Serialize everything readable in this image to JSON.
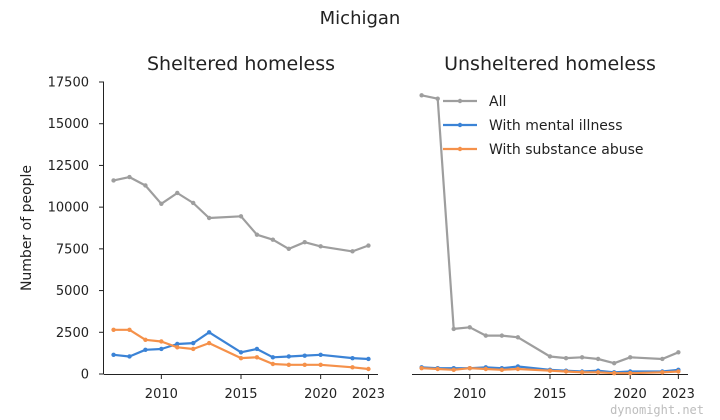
{
  "title": "Michigan",
  "watermark": "dynomight.net",
  "chart_data": {
    "type": "line",
    "ylabel": "Number of people",
    "ylim": [
      0,
      17500
    ],
    "yticks": [
      0,
      2500,
      5000,
      7500,
      10000,
      12500,
      15000,
      17500
    ],
    "xlim": [
      2006.4,
      2023.6
    ],
    "xticks": [
      2010,
      2015,
      2020,
      2023
    ],
    "legend_position": "top-right",
    "grid": false,
    "colors": {
      "All": "#9e9e9e",
      "With mental illness": "#3b83d6",
      "With substance abuse": "#f5914a"
    },
    "panels": [
      {
        "title": "Sheltered homeless",
        "series": [
          {
            "name": "All",
            "x": [
              2007,
              2008,
              2009,
              2010,
              2011,
              2012,
              2013,
              2015,
              2016,
              2017,
              2018,
              2019,
              2020,
              2022,
              2023
            ],
            "y": [
              11600,
              11800,
              11300,
              10200,
              10850,
              10250,
              9350,
              9450,
              8350,
              8050,
              7500,
              7900,
              7650,
              7350,
              7700
            ]
          },
          {
            "name": "With mental illness",
            "x": [
              2007,
              2008,
              2009,
              2010,
              2011,
              2012,
              2013,
              2015,
              2016,
              2017,
              2018,
              2019,
              2020,
              2022,
              2023
            ],
            "y": [
              1150,
              1050,
              1450,
              1500,
              1800,
              1850,
              2500,
              1300,
              1500,
              1000,
              1050,
              1100,
              1150,
              950,
              900
            ]
          },
          {
            "name": "With substance abuse",
            "x": [
              2007,
              2008,
              2009,
              2010,
              2011,
              2012,
              2013,
              2015,
              2016,
              2017,
              2018,
              2019,
              2020,
              2022,
              2023
            ],
            "y": [
              2650,
              2650,
              2050,
              1950,
              1600,
              1500,
              1850,
              950,
              1000,
              600,
              550,
              550,
              550,
              400,
              300
            ]
          }
        ]
      },
      {
        "title": "Unsheltered homeless",
        "series": [
          {
            "name": "All",
            "x": [
              2007,
              2008,
              2009,
              2010,
              2011,
              2012,
              2013,
              2015,
              2016,
              2017,
              2018,
              2019,
              2020,
              2022,
              2023
            ],
            "y": [
              16700,
              16500,
              2700,
              2800,
              2300,
              2300,
              2200,
              1050,
              950,
              1000,
              900,
              650,
              1000,
              900,
              1300
            ]
          },
          {
            "name": "With mental illness",
            "x": [
              2007,
              2008,
              2009,
              2010,
              2011,
              2012,
              2013,
              2015,
              2016,
              2017,
              2018,
              2019,
              2020,
              2022,
              2023
            ],
            "y": [
              400,
              350,
              350,
              350,
              400,
              350,
              450,
              250,
              200,
              150,
              200,
              100,
              150,
              150,
              250
            ]
          },
          {
            "name": "With substance abuse",
            "x": [
              2007,
              2008,
              2009,
              2010,
              2011,
              2012,
              2013,
              2015,
              2016,
              2017,
              2018,
              2019,
              2020,
              2022,
              2023
            ],
            "y": [
              350,
              300,
              250,
              350,
              300,
              250,
              300,
              200,
              150,
              100,
              100,
              50,
              50,
              100,
              150
            ]
          }
        ]
      }
    ]
  }
}
